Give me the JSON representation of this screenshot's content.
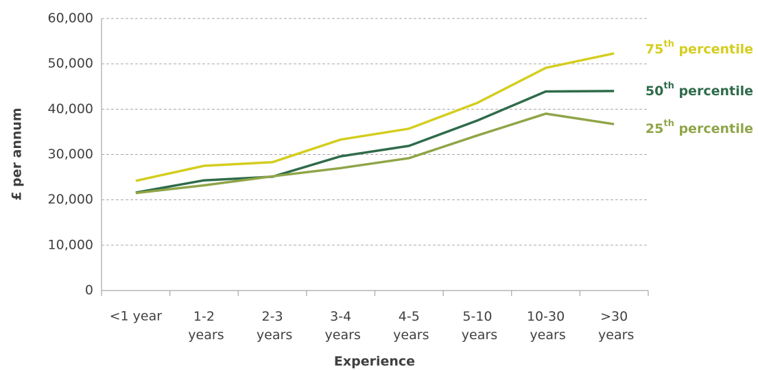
{
  "chart_data": {
    "type": "line",
    "x_label": "Experience",
    "y_label": "£ per annum",
    "categories": [
      "<1 year",
      "1-2 years",
      "2-3 years",
      "3-4 years",
      "4-5 years",
      "5-10 years",
      "10-30 years",
      ">30 years"
    ],
    "series": [
      {
        "name": "75th percentile",
        "color": "#d4cd1f",
        "values": [
          24200,
          27500,
          28300,
          33300,
          35700,
          41400,
          49100,
          52300
        ]
      },
      {
        "name": "50th percentile",
        "color": "#2f6b4a",
        "values": [
          21600,
          24300,
          25100,
          29600,
          31900,
          37500,
          43900,
          44000
        ]
      },
      {
        "name": "25th percentile",
        "color": "#8fa548",
        "values": [
          21500,
          23200,
          25200,
          27000,
          29200,
          34200,
          39000,
          36700
        ]
      }
    ],
    "ylim": [
      0,
      60000
    ],
    "yticks": [
      {
        "value": 0,
        "label": "0"
      },
      {
        "value": 10000,
        "label": "10,000"
      },
      {
        "value": 20000,
        "label": "20,000"
      },
      {
        "value": 30000,
        "label": "30,000"
      },
      {
        "value": 40000,
        "label": "40,000"
      },
      {
        "value": 50000,
        "label": "50,000"
      },
      {
        "value": 60000,
        "label": "60,000"
      }
    ],
    "grid": true
  }
}
